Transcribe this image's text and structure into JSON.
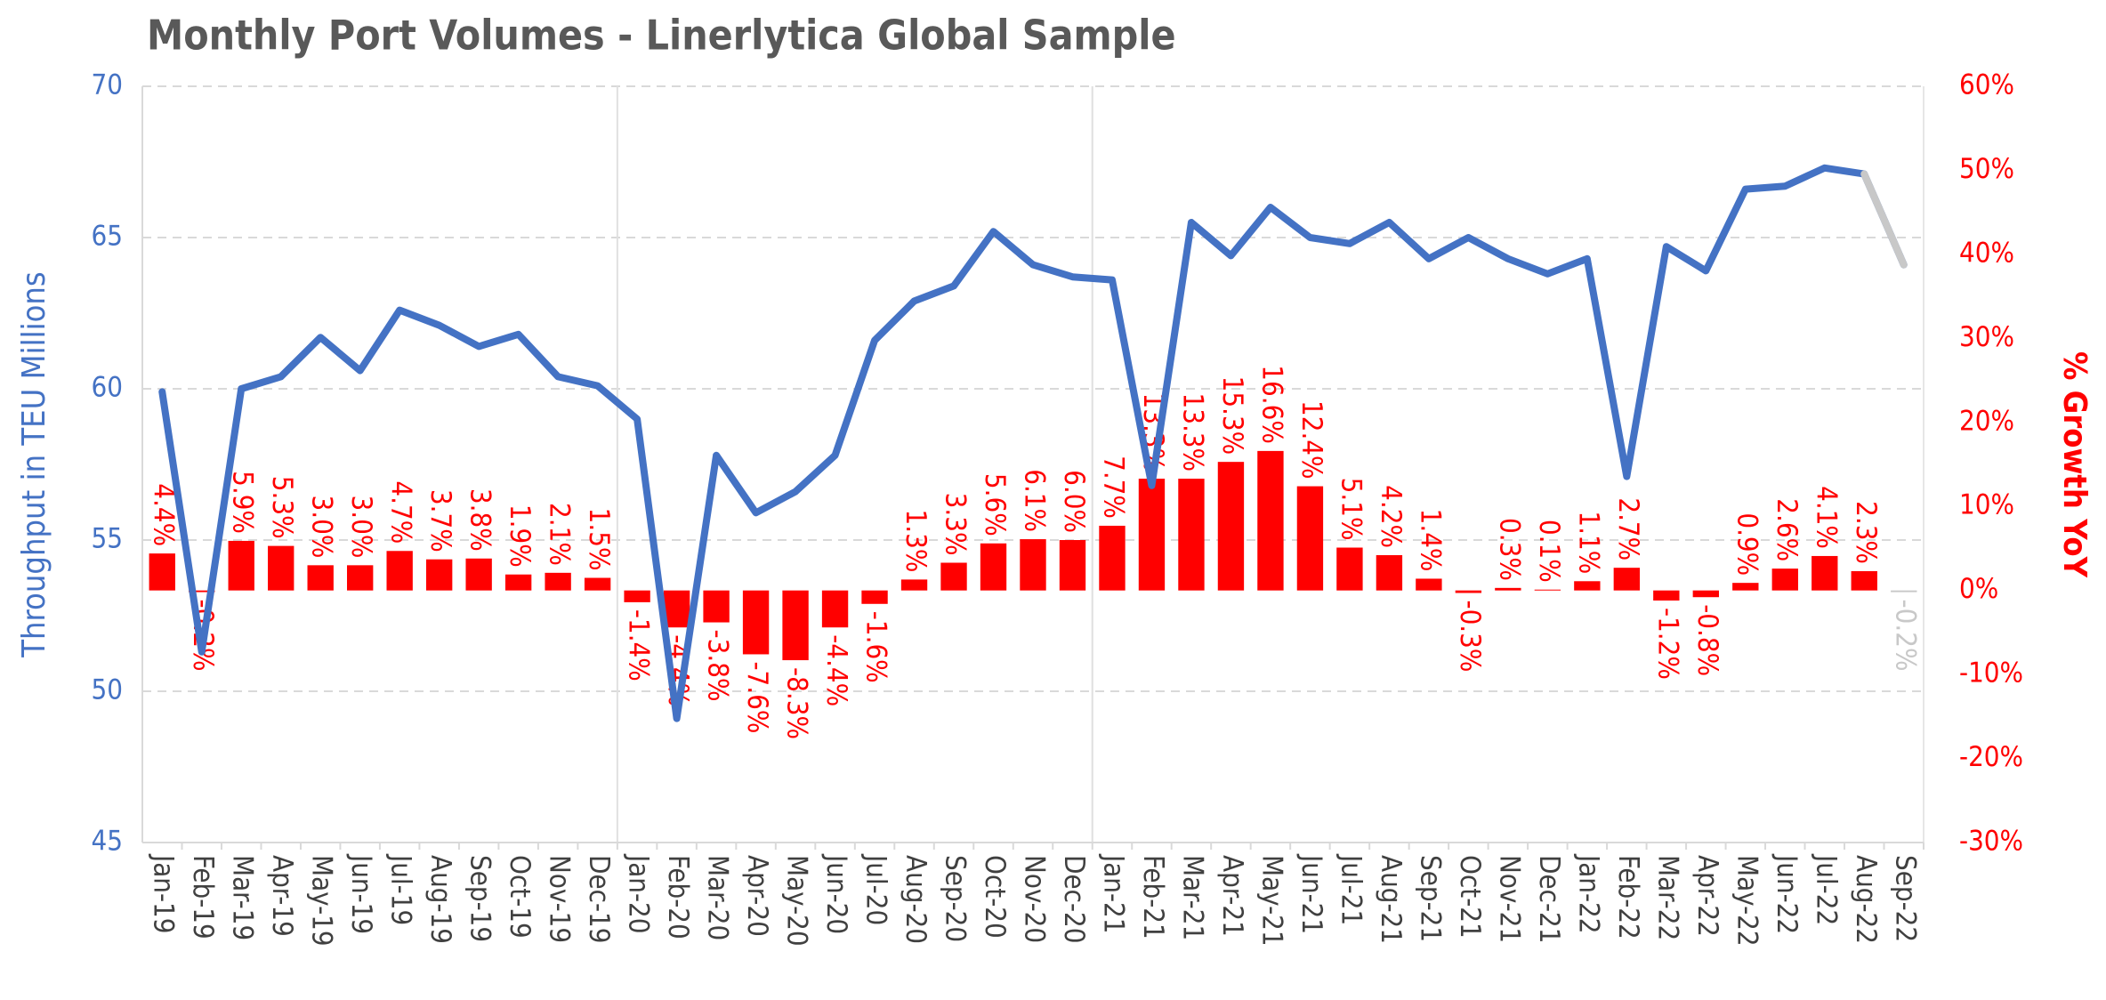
{
  "chart_data": {
    "type": "combo",
    "title": "Monthly Port Volumes - Linerlytica Global Sample",
    "y_label": "Throughput in TEU Millions",
    "y2_label": "% Growth YoY",
    "categories": [
      "Jan-19",
      "Feb-19",
      "Mar-19",
      "Apr-19",
      "May-19",
      "Jun-19",
      "Jul-19",
      "Aug-19",
      "Sep-19",
      "Oct-19",
      "Nov-19",
      "Dec-19",
      "Jan-20",
      "Feb-20",
      "Mar-20",
      "Apr-20",
      "May-20",
      "Jun-20",
      "Jul-20",
      "Aug-20",
      "Sep-20",
      "Oct-20",
      "Nov-20",
      "Dec-20",
      "Jan-21",
      "Feb-21",
      "Mar-21",
      "Apr-21",
      "May-21",
      "Jun-21",
      "Jul-21",
      "Aug-21",
      "Sep-21",
      "Oct-21",
      "Nov-21",
      "Dec-21",
      "Jan-22",
      "Feb-22",
      "Mar-22",
      "Apr-22",
      "May-22",
      "Jun-22",
      "Jul-22",
      "Aug-22",
      "Sep-22"
    ],
    "series": [
      {
        "type": "bar",
        "axis": "y2",
        "color": "#ff0000",
        "projection_color": "#c8c8c8",
        "values": [
          4.4,
          -0.2,
          5.9,
          5.3,
          3.0,
          3.0,
          4.7,
          3.7,
          3.8,
          1.9,
          2.1,
          1.5,
          -1.4,
          -4.4,
          -3.8,
          -7.6,
          -8.3,
          -4.4,
          -1.6,
          1.3,
          3.3,
          5.6,
          6.1,
          6.0,
          7.7,
          13.3,
          13.3,
          15.3,
          16.6,
          12.4,
          5.1,
          4.2,
          1.4,
          -0.3,
          0.3,
          0.1,
          1.1,
          2.7,
          -1.2,
          -0.8,
          0.9,
          2.6,
          4.1,
          2.3,
          -0.2
        ],
        "value_labels": [
          "4.4%",
          "-0.2%",
          "5.9%",
          "5.3%",
          "3.0%",
          "3.0%",
          "4.7%",
          "3.7%",
          "3.8%",
          "1.9%",
          "2.1%",
          "1.5%",
          "-1.4%",
          "-4.4%",
          "-3.8%",
          "-7.6%",
          "-8.3%",
          "-4.4%",
          "-1.6%",
          "1.3%",
          "3.3%",
          "5.6%",
          "6.1%",
          "6.0%",
          "7.7%",
          "13.3%",
          "13.3%",
          "15.3%",
          "16.6%",
          "12.4%",
          "5.1%",
          "4.2%",
          "1.4%",
          "-0.3%",
          "0.3%",
          "0.1%",
          "1.1%",
          "2.7%",
          "-1.2%",
          "-0.8%",
          "0.9%",
          "2.6%",
          "4.1%",
          "2.3%",
          "-0.2%"
        ]
      },
      {
        "type": "line",
        "axis": "y",
        "color": "#4472c4",
        "projection_color": "#c8c8c8",
        "values": [
          59.9,
          51.3,
          60.0,
          60.4,
          61.7,
          60.6,
          62.6,
          62.1,
          61.4,
          61.8,
          60.4,
          60.1,
          59.0,
          49.1,
          57.8,
          55.9,
          56.6,
          57.8,
          61.6,
          62.9,
          63.4,
          65.2,
          64.1,
          63.7,
          63.6,
          56.8,
          65.5,
          64.4,
          66.0,
          65.0,
          64.8,
          65.5,
          64.3,
          65.0,
          64.3,
          63.8,
          64.3,
          57.1,
          64.7,
          63.9,
          66.6,
          66.7,
          67.3,
          67.1,
          64.1
        ]
      }
    ],
    "ylim": [
      45,
      70
    ],
    "yticks": [
      45,
      50,
      55,
      60,
      65,
      70
    ],
    "y_color": "#4472c4",
    "y2lim": [
      -30,
      60
    ],
    "y2ticks": [
      {
        "value": -30,
        "label": "-30%"
      },
      {
        "value": -20,
        "label": "-20%"
      },
      {
        "value": -10,
        "label": "-10%"
      },
      {
        "value": 0,
        "label": "0%"
      },
      {
        "value": 10,
        "label": "10%"
      },
      {
        "value": 20,
        "label": "20%"
      },
      {
        "value": 30,
        "label": "30%"
      },
      {
        "value": 40,
        "label": "40%"
      },
      {
        "value": 50,
        "label": "50%"
      },
      {
        "value": 60,
        "label": "60%"
      }
    ],
    "y2_color": "#ff0000",
    "grid": true
  }
}
